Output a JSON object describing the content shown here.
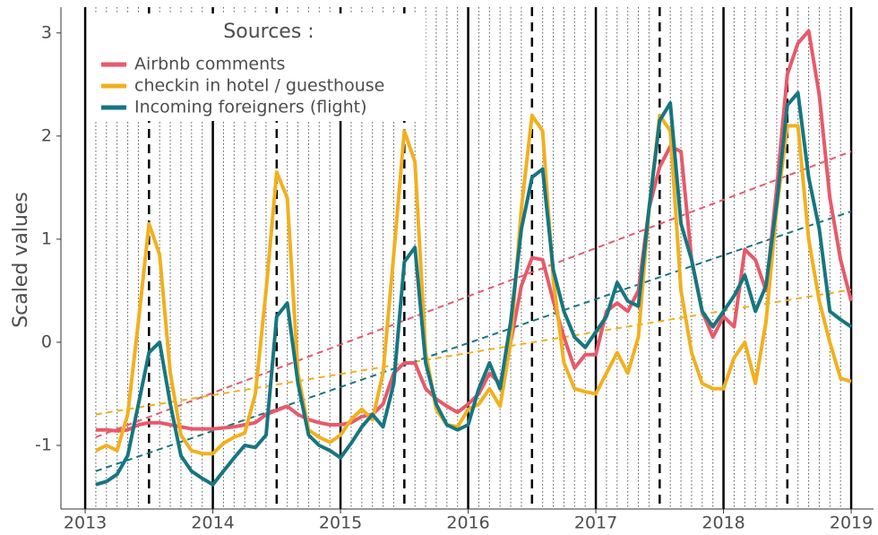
{
  "chart_data": {
    "type": "line",
    "ylabel": "Scaled values",
    "legend_title": "Sources :",
    "legend_position": "top-left",
    "xlim": [
      2012.81,
      2019.175
    ],
    "ylim": [
      -1.617,
      3.25
    ],
    "xticks": [
      2013,
      2014,
      2015,
      2016,
      2017,
      2018,
      2019
    ],
    "yticks": [
      -1,
      0,
      1,
      2,
      3
    ],
    "x": [
      2013.083,
      2013.167,
      2013.25,
      2013.333,
      2013.417,
      2013.5,
      2013.583,
      2013.667,
      2013.75,
      2013.833,
      2013.917,
      2014.0,
      2014.083,
      2014.167,
      2014.25,
      2014.333,
      2014.417,
      2014.5,
      2014.583,
      2014.667,
      2014.75,
      2014.833,
      2014.917,
      2015.0,
      2015.083,
      2015.167,
      2015.25,
      2015.333,
      2015.417,
      2015.5,
      2015.583,
      2015.667,
      2015.75,
      2015.833,
      2015.917,
      2016.0,
      2016.083,
      2016.167,
      2016.25,
      2016.333,
      2016.417,
      2016.5,
      2016.583,
      2016.667,
      2016.75,
      2016.833,
      2016.917,
      2017.0,
      2017.083,
      2017.167,
      2017.25,
      2017.333,
      2017.417,
      2017.5,
      2017.583,
      2017.667,
      2017.75,
      2017.833,
      2017.917,
      2018.0,
      2018.083,
      2018.167,
      2018.25,
      2018.333,
      2018.417,
      2018.5,
      2018.583,
      2018.667,
      2018.75,
      2018.833,
      2018.917,
      2019.0
    ],
    "series": [
      {
        "name": "Airbnb comments",
        "color": "#e8596a",
        "values": [
          -0.85,
          -0.85,
          -0.86,
          -0.85,
          -0.8,
          -0.78,
          -0.78,
          -0.8,
          -0.82,
          -0.84,
          -0.84,
          -0.84,
          -0.83,
          -0.82,
          -0.8,
          -0.78,
          -0.7,
          -0.66,
          -0.62,
          -0.7,
          -0.75,
          -0.78,
          -0.8,
          -0.8,
          -0.78,
          -0.72,
          -0.7,
          -0.6,
          -0.3,
          -0.2,
          -0.2,
          -0.45,
          -0.55,
          -0.62,
          -0.68,
          -0.6,
          -0.5,
          -0.3,
          -0.4,
          0.0,
          0.55,
          0.82,
          0.8,
          0.4,
          0.05,
          -0.25,
          -0.12,
          -0.12,
          0.3,
          0.38,
          0.3,
          0.5,
          1.3,
          1.7,
          1.9,
          1.85,
          0.8,
          0.3,
          0.05,
          0.25,
          0.15,
          0.9,
          0.8,
          0.5,
          1.5,
          2.6,
          2.9,
          3.02,
          2.4,
          1.4,
          0.8,
          0.4
        ],
        "trend": {
          "x": [
            2013.083,
            2019.0
          ],
          "values": [
            -0.92,
            1.85
          ]
        }
      },
      {
        "name": "checkin in hotel / guesthouse",
        "color": "#f2b01e",
        "values": [
          -1.05,
          -1.0,
          -1.05,
          -0.7,
          0.2,
          1.15,
          0.85,
          -0.3,
          -0.9,
          -1.05,
          -1.08,
          -1.08,
          -0.98,
          -0.92,
          -0.88,
          -0.5,
          0.5,
          1.65,
          1.4,
          -0.3,
          -0.85,
          -0.92,
          -0.97,
          -0.9,
          -0.75,
          -0.65,
          -0.75,
          -0.3,
          0.85,
          2.05,
          1.75,
          -0.1,
          -0.65,
          -0.8,
          -0.82,
          -0.65,
          -0.6,
          -0.45,
          -0.62,
          0.0,
          1.3,
          2.2,
          2.05,
          0.6,
          -0.2,
          -0.45,
          -0.48,
          -0.5,
          -0.3,
          -0.1,
          -0.3,
          0.05,
          1.3,
          2.2,
          2.05,
          0.5,
          -0.1,
          -0.4,
          -0.45,
          -0.45,
          -0.15,
          0.0,
          -0.4,
          0.2,
          1.3,
          2.1,
          2.1,
          1.0,
          0.4,
          0.0,
          -0.35,
          -0.38
        ],
        "trend": {
          "x": [
            2013.083,
            2019.0
          ],
          "values": [
            -0.7,
            0.51
          ]
        }
      },
      {
        "name": "Incoming foreigners (flight)",
        "color": "#167680",
        "values": [
          -1.38,
          -1.35,
          -1.28,
          -1.1,
          -0.6,
          -0.1,
          0.0,
          -0.6,
          -1.1,
          -1.25,
          -1.32,
          -1.38,
          -1.25,
          -1.12,
          -1.0,
          -1.02,
          -0.9,
          0.25,
          0.38,
          -0.4,
          -0.9,
          -1.0,
          -1.05,
          -1.12,
          -0.98,
          -0.82,
          -0.7,
          -0.82,
          -0.4,
          0.78,
          0.92,
          -0.2,
          -0.6,
          -0.8,
          -0.85,
          -0.8,
          -0.45,
          -0.2,
          -0.45,
          0.2,
          1.1,
          1.6,
          1.68,
          0.7,
          0.3,
          0.05,
          -0.05,
          0.1,
          0.25,
          0.58,
          0.4,
          0.35,
          1.3,
          2.15,
          2.32,
          1.15,
          0.8,
          0.3,
          0.15,
          0.3,
          0.45,
          0.65,
          0.3,
          0.55,
          1.35,
          2.3,
          2.42,
          1.6,
          1.1,
          0.3,
          0.22,
          0.15
        ],
        "trend": {
          "x": [
            2013.083,
            2019.0
          ],
          "values": [
            -1.25,
            1.27
          ]
        }
      }
    ]
  }
}
